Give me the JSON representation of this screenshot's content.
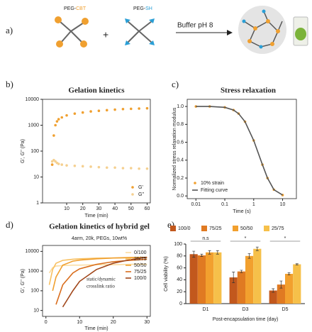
{
  "scheme": {
    "label": "a)",
    "reactant1": {
      "prefix": "PEG-",
      "suffix": "CBT"
    },
    "plus": "+",
    "reactant2": {
      "prefix": "PEG-",
      "suffix": "SH"
    },
    "condition": "Buffer pH 8"
  },
  "chart_data": [
    {
      "type": "line",
      "label": "b)",
      "title": "Gelation kinetics",
      "xlabel": "Time (min)",
      "ylabel": "G', G'' (Pa)",
      "x": [
        1,
        2,
        3,
        4,
        5,
        7,
        10,
        15,
        20,
        25,
        30,
        35,
        40,
        45,
        50,
        55,
        60
      ],
      "xlim": [
        -5,
        62
      ],
      "xticks": [
        10,
        20,
        30,
        40,
        50,
        60
      ],
      "ylim": [
        1,
        10000
      ],
      "yticks": [
        1,
        10,
        100,
        1000,
        10000
      ],
      "ylog": true,
      "legend": "lower right",
      "series": [
        {
          "name": "G'",
          "color": "#f0a030",
          "marker": true,
          "values": [
            30,
            400,
            1000,
            1400,
            1700,
            2000,
            2400,
            2800,
            3100,
            3400,
            3600,
            3800,
            4000,
            4200,
            4300,
            4400,
            4500
          ]
        },
        {
          "name": "G''",
          "color": "#f5d090",
          "marker": true,
          "values": [
            40,
            45,
            40,
            35,
            32,
            30,
            28,
            27,
            26,
            25,
            24,
            23,
            23,
            22,
            22,
            21,
            21
          ]
        }
      ]
    },
    {
      "type": "line",
      "label": "c)",
      "title": "Stress relaxation",
      "xlabel": "Time (s)",
      "ylabel": "Normalized stress relaxation modulus",
      "x": [
        0.01,
        0.03,
        0.1,
        0.2,
        0.3,
        0.5,
        1,
        2,
        3,
        5,
        10
      ],
      "xlim": [
        0.005,
        30
      ],
      "xticks": [
        0.01,
        0.1,
        1,
        10
      ],
      "xlog": true,
      "ylim": [
        -0.03,
        1.08
      ],
      "yticks": [
        {
          "value": 0,
          "label": "0.0"
        },
        0.2,
        0.4,
        0.6,
        0.8,
        {
          "value": 1,
          "label": "1.0"
        }
      ],
      "legend": "lower left",
      "series": [
        {
          "name": "10% strain",
          "color": "#f0a030",
          "marker": true,
          "values": [
            1,
            1,
            0.99,
            0.96,
            0.92,
            0.83,
            0.62,
            0.35,
            0.2,
            0.07,
            0.01
          ]
        },
        {
          "name": "Fitting curve",
          "color": "#555555",
          "line": true,
          "values": [
            1,
            1,
            0.99,
            0.96,
            0.92,
            0.83,
            0.62,
            0.35,
            0.2,
            0.07,
            0.01
          ]
        }
      ]
    },
    {
      "type": "line",
      "label": "d)",
      "title": "Gelation kinetics of hybrid gel",
      "subtitle": "4arm, 20k, PEGs, 10wt%",
      "xlabel": "Time (min)",
      "ylabel": "G', G'' (Pa)",
      "annotation": [
        "static/dynamic",
        "crosslink ratio"
      ],
      "x": [
        0,
        1,
        2,
        3,
        5,
        8,
        10,
        15,
        20,
        25,
        30
      ],
      "xlim": [
        -1,
        31
      ],
      "xticks": [
        0,
        10,
        20,
        30
      ],
      "ylim": [
        5,
        20000
      ],
      "yticks": [
        10,
        100,
        1000,
        10000
      ],
      "ylog": true,
      "legend": "right",
      "series": [
        {
          "name": "0/100",
          "color": "#fbdca0",
          "line": true,
          "values": [
            null,
            800,
            1500,
            1800,
            1900,
            2000,
            2000,
            2100,
            2100,
            2200,
            2200
          ]
        },
        {
          "name": "25/75",
          "color": "#f8c060",
          "line": true,
          "values": [
            null,
            200,
            1200,
            2500,
            3500,
            4000,
            4200,
            4500,
            4600,
            4700,
            4800
          ]
        },
        {
          "name": "50/50",
          "color": "#f0a030",
          "line": true,
          "values": [
            null,
            null,
            100,
            500,
            2000,
            3200,
            3600,
            4200,
            4600,
            4900,
            5000
          ]
        },
        {
          "name": "75/25",
          "color": "#d96d1c",
          "line": true,
          "values": [
            null,
            null,
            null,
            20,
            200,
            800,
            1300,
            2200,
            3000,
            3500,
            4000
          ]
        },
        {
          "name": "100/0",
          "color": "#a0461a",
          "line": true,
          "values": [
            null,
            null,
            null,
            null,
            15,
            100,
            300,
            1200,
            2500,
            3800,
            5000
          ]
        }
      ]
    },
    {
      "type": "bar",
      "label": "e)",
      "xlabel": "Post-encapsulation time (day)",
      "ylabel": "Cell viability (%)",
      "categories": [
        "D1",
        "D3",
        "D5"
      ],
      "significance": [
        "n.s",
        "*",
        "*"
      ],
      "ylim": [
        0,
        100
      ],
      "yticks": [
        0,
        20,
        40,
        60,
        80,
        100
      ],
      "legend": "top",
      "series": [
        {
          "name": "100/0",
          "color": "#c2581d",
          "values": [
            83,
            44,
            22
          ],
          "errors": [
            5,
            9,
            3
          ]
        },
        {
          "name": "75/25",
          "color": "#e07a22",
          "values": [
            81,
            54,
            32
          ],
          "errors": [
            2,
            2,
            6
          ]
        },
        {
          "name": "50/50",
          "color": "#f2a02e",
          "values": [
            86,
            80,
            50
          ],
          "errors": [
            3,
            4,
            2
          ]
        },
        {
          "name": "25/75",
          "color": "#f6c04a",
          "values": [
            86,
            92,
            66
          ],
          "errors": [
            3,
            3,
            1
          ]
        }
      ]
    }
  ]
}
